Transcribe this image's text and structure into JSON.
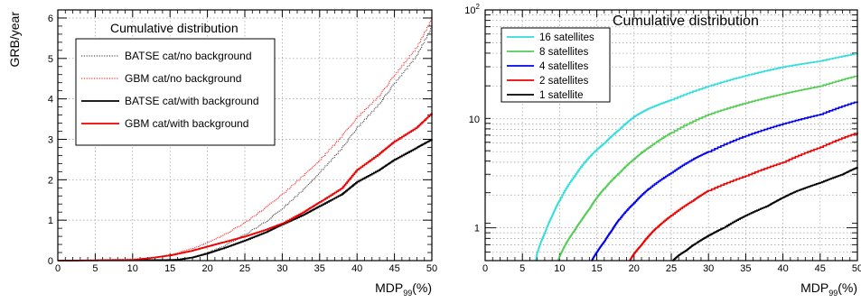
{
  "chart_data": [
    {
      "type": "line",
      "title": "Cumulative distribution",
      "ylabel": "GRB/year",
      "xlabel": "MDP",
      "xlabel_sub": "99",
      "xlabel_tail": "(%)",
      "xlim": [
        0,
        50
      ],
      "ylim": [
        0,
        6.2
      ],
      "xticks": [
        0,
        5,
        10,
        15,
        20,
        25,
        30,
        35,
        40,
        45,
        50
      ],
      "yticks": [
        0,
        1,
        2,
        3,
        4,
        5,
        6
      ],
      "grid": true,
      "legend_position": "top-left",
      "series": [
        {
          "name": "BATSE cat/no background",
          "color": "#555555",
          "style": "dotted",
          "x": [
            0,
            15,
            18,
            20,
            22,
            25,
            28,
            30,
            33,
            35,
            38,
            40,
            43,
            45,
            48,
            50
          ],
          "y": [
            0,
            0.02,
            0.08,
            0.2,
            0.35,
            0.65,
            1.0,
            1.3,
            1.8,
            2.2,
            2.8,
            3.3,
            3.9,
            4.4,
            5.1,
            5.8
          ]
        },
        {
          "name": "GBM cat/no background",
          "color": "#ff3333",
          "style": "dotted",
          "x": [
            0,
            12,
            15,
            18,
            20,
            22,
            25,
            28,
            30,
            33,
            35,
            38,
            40,
            43,
            45,
            48,
            50
          ],
          "y": [
            0,
            0.05,
            0.15,
            0.3,
            0.45,
            0.62,
            0.95,
            1.35,
            1.65,
            2.15,
            2.5,
            3.1,
            3.55,
            4.1,
            4.6,
            5.3,
            6.0
          ]
        },
        {
          "name": "BATSE cat/with background",
          "color": "#000000",
          "style": "solid",
          "x": [
            0,
            16,
            18,
            20,
            22,
            25,
            28,
            30,
            33,
            35,
            38,
            40,
            43,
            45,
            48,
            50
          ],
          "y": [
            0,
            0.02,
            0.08,
            0.18,
            0.3,
            0.5,
            0.72,
            0.9,
            1.15,
            1.35,
            1.65,
            1.95,
            2.25,
            2.5,
            2.8,
            3.0
          ]
        },
        {
          "name": "GBM cat/with background",
          "color": "#ee0000",
          "style": "solid",
          "x": [
            0,
            10,
            13,
            15,
            18,
            20,
            22,
            25,
            28,
            30,
            33,
            35,
            38,
            40,
            43,
            45,
            48,
            50
          ],
          "y": [
            0,
            0.02,
            0.08,
            0.13,
            0.25,
            0.35,
            0.45,
            0.6,
            0.78,
            0.92,
            1.22,
            1.45,
            1.8,
            2.25,
            2.65,
            2.95,
            3.3,
            3.65
          ]
        }
      ]
    },
    {
      "type": "line",
      "title": "Cumulative distribution",
      "xlabel": "MDP",
      "xlabel_sub": "99",
      "xlabel_tail": "(%)",
      "xlim": [
        0,
        50
      ],
      "ylim": [
        0.5,
        100
      ],
      "yscale": "log",
      "xticks": [
        0,
        5,
        10,
        15,
        20,
        25,
        30,
        35,
        40,
        45,
        50
      ],
      "yticks": [
        {
          "value": 1,
          "base": "1",
          "exp": ""
        },
        {
          "value": 10,
          "base": "10",
          "exp": ""
        },
        {
          "value": 100,
          "base": "10",
          "exp": "2"
        }
      ],
      "grid": true,
      "legend_position": "top-left",
      "series": [
        {
          "name": "16 satellites",
          "color": "#33dddd",
          "style": "solid",
          "x": [
            6.8,
            7,
            8,
            9,
            10,
            12,
            14,
            16,
            18,
            20,
            22,
            25,
            30,
            35,
            40,
            45,
            50
          ],
          "y": [
            0.5,
            0.6,
            0.9,
            1.3,
            1.8,
            3.0,
            4.5,
            6.0,
            8.0,
            10.5,
            12.5,
            15.0,
            20.0,
            25.0,
            30.0,
            34.0,
            40.0
          ]
        },
        {
          "name": "8 satellites",
          "color": "#55cc55",
          "style": "solid",
          "x": [
            9.8,
            10,
            11,
            12,
            13,
            14,
            15,
            16,
            18,
            20,
            22,
            25,
            30,
            35,
            40,
            45,
            50
          ],
          "y": [
            0.5,
            0.55,
            0.75,
            0.95,
            1.2,
            1.5,
            1.9,
            2.3,
            3.2,
            4.3,
            5.5,
            7.5,
            11.0,
            14.0,
            17.0,
            20.0,
            25.0
          ]
        },
        {
          "name": "4 satellites",
          "color": "#0000ee",
          "style": "solid",
          "x": [
            14.3,
            15,
            16,
            17,
            18,
            20,
            22,
            25,
            28,
            30,
            35,
            40,
            45,
            50
          ],
          "y": [
            0.5,
            0.6,
            0.75,
            0.95,
            1.2,
            1.7,
            2.3,
            3.2,
            4.3,
            5.0,
            7.0,
            9.0,
            11.0,
            14.5
          ]
        },
        {
          "name": "2 satellites",
          "color": "#ee0000",
          "style": "solid",
          "x": [
            19.4,
            20,
            21,
            22,
            23,
            25,
            28,
            30,
            35,
            40,
            45,
            50
          ],
          "y": [
            0.5,
            0.58,
            0.7,
            0.85,
            1.0,
            1.3,
            1.8,
            2.2,
            3.0,
            4.0,
            5.5,
            7.5
          ]
        },
        {
          "name": "1 satellite",
          "color": "#000000",
          "style": "solid",
          "x": [
            25.2,
            26,
            27,
            28,
            30,
            32,
            35,
            38,
            40,
            42,
            45,
            48,
            50
          ],
          "y": [
            0.5,
            0.56,
            0.62,
            0.7,
            0.85,
            1.0,
            1.3,
            1.6,
            1.9,
            2.2,
            2.6,
            3.1,
            3.6
          ]
        }
      ]
    }
  ]
}
